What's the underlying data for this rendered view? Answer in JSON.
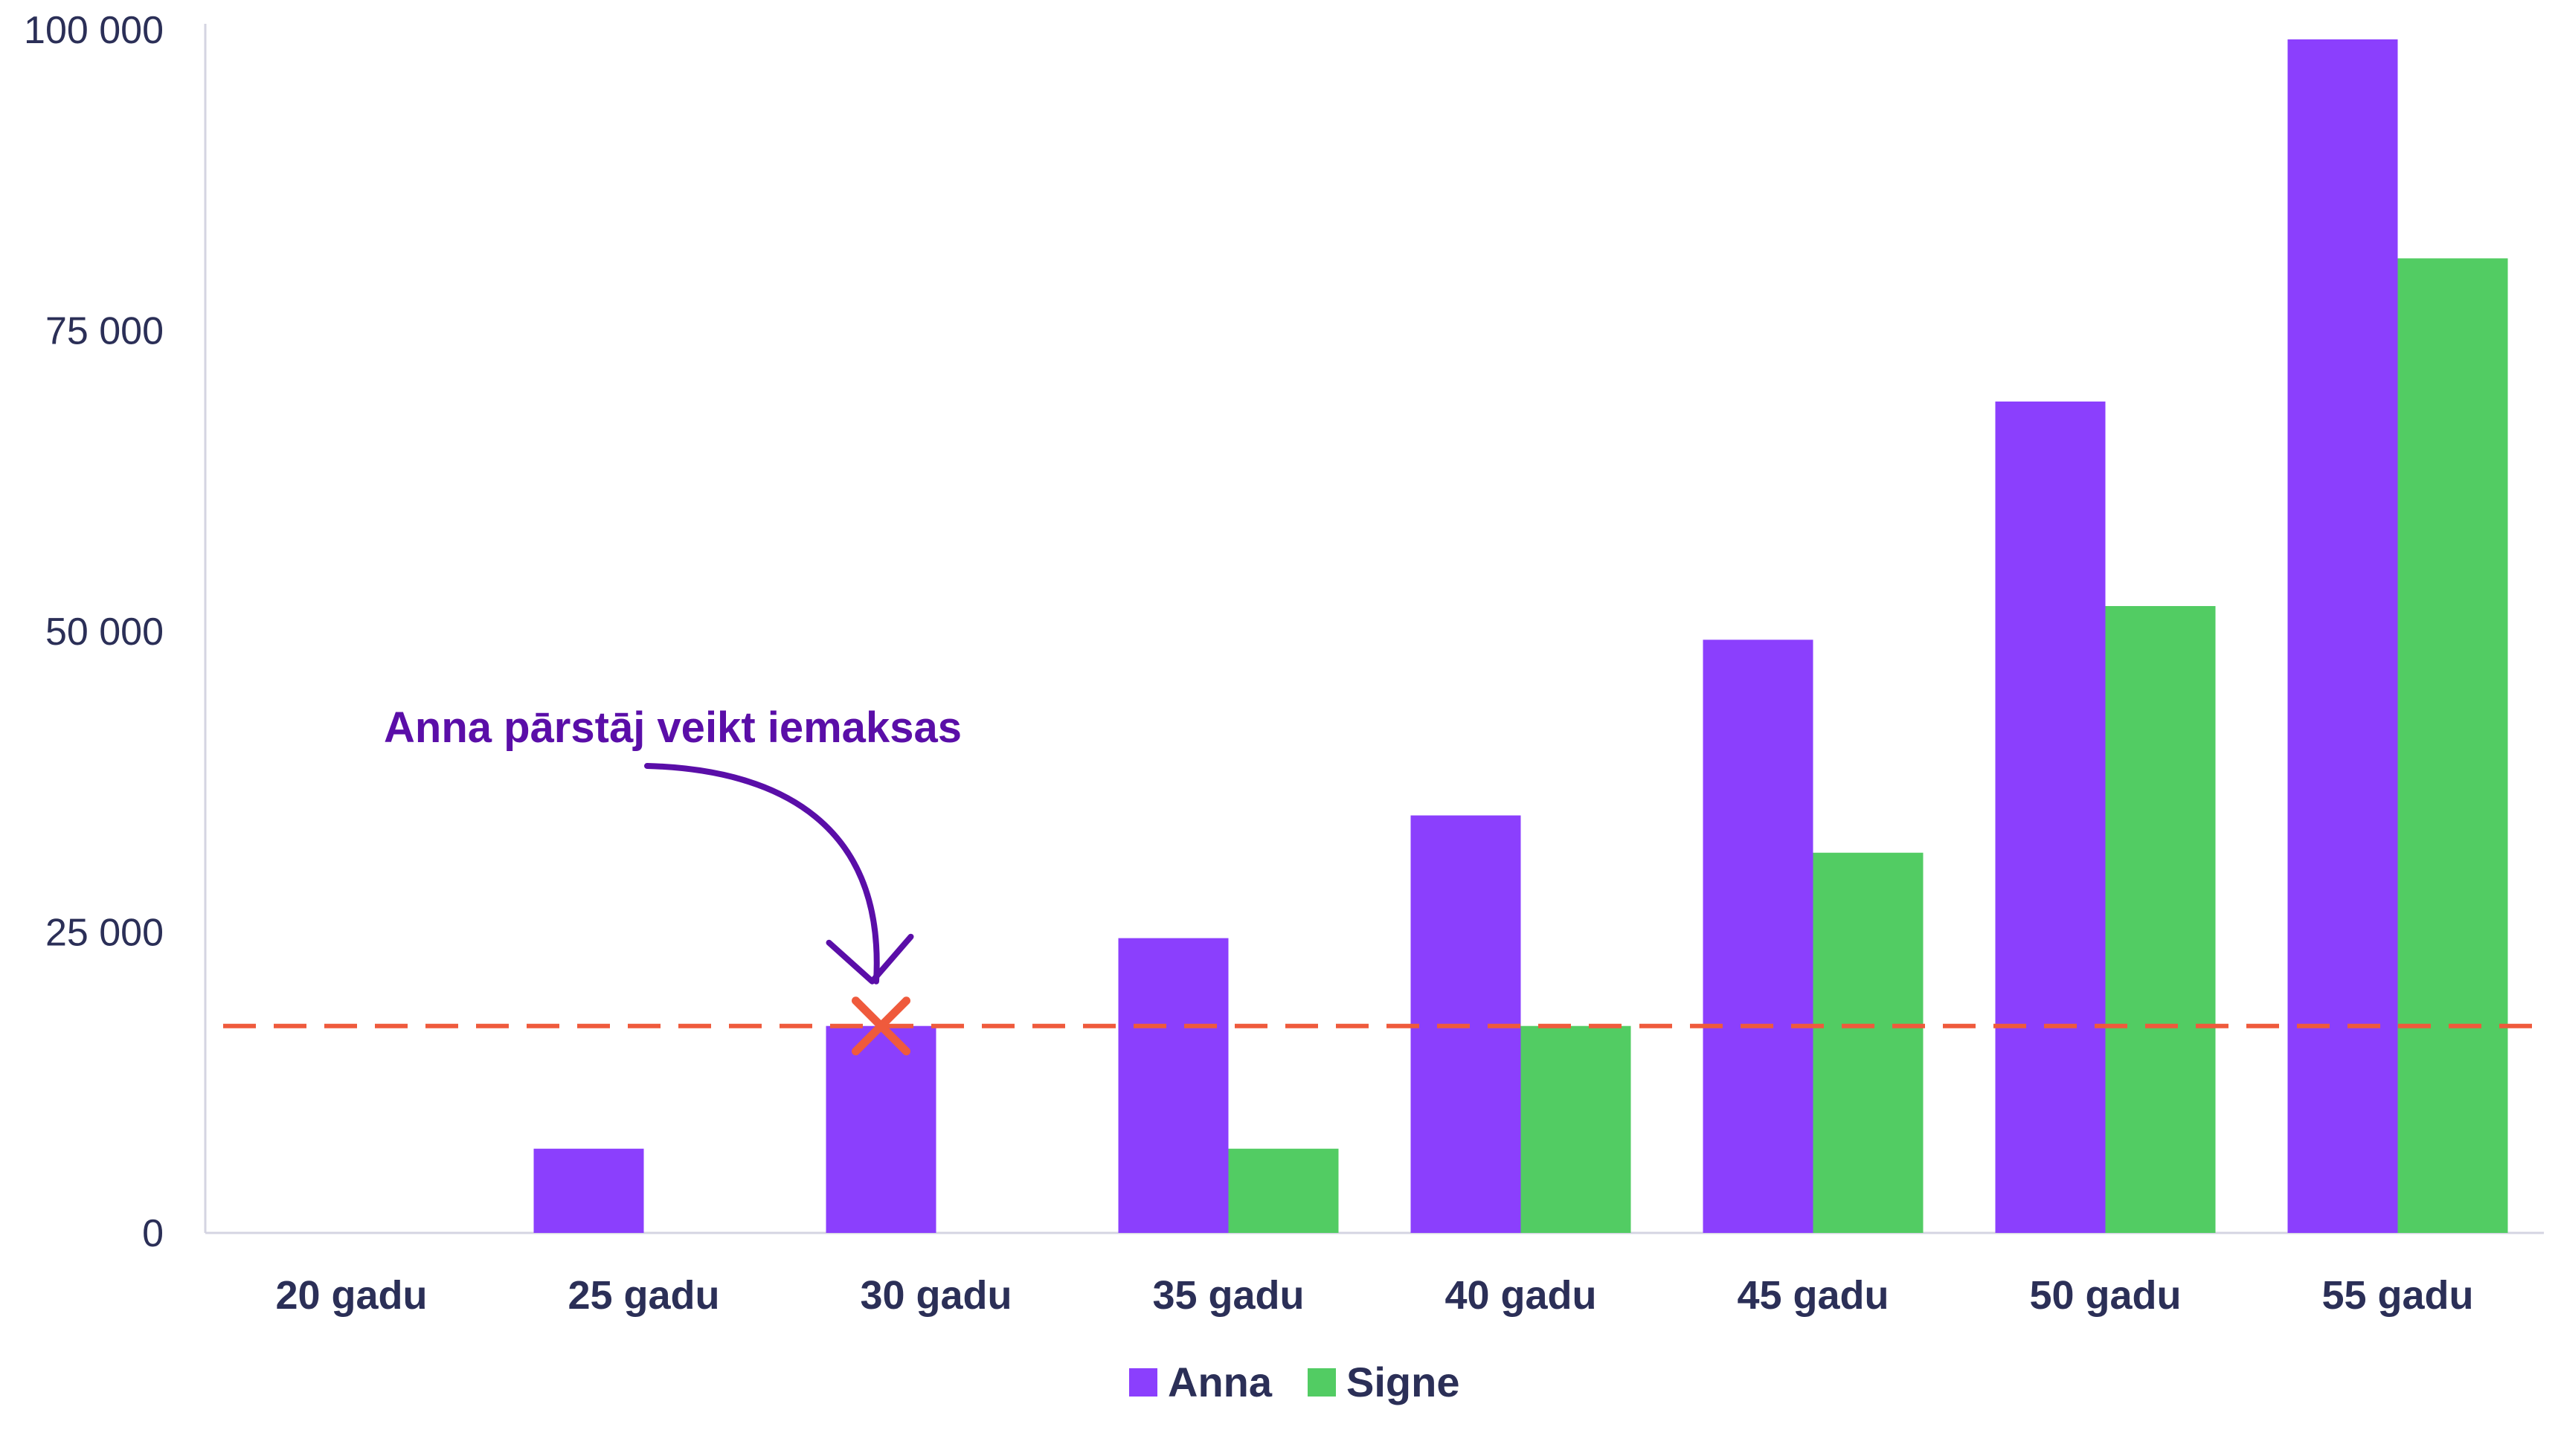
{
  "chart_data": {
    "type": "bar",
    "title": "",
    "xlabel": "",
    "ylabel": "",
    "categories": [
      "20 gadu",
      "25 gadu",
      "30 gadu",
      "35 gadu",
      "40 gadu",
      "45 gadu",
      "50 gadu",
      "55 gadu"
    ],
    "series": [
      {
        "name": "Anna",
        "color": "#8b3ffd",
        "values": [
          0,
          7000,
          17200,
          24500,
          34700,
          49300,
          69100,
          99200
        ]
      },
      {
        "name": "Signe",
        "color": "#52cc63",
        "values": [
          0,
          0,
          0,
          7000,
          17200,
          31600,
          52100,
          81000
        ]
      }
    ],
    "ylim": [
      0,
      100000
    ],
    "yticks": [
      0,
      25000,
      50000,
      75000,
      100000
    ],
    "ytick_labels": [
      "0",
      "25 000",
      "50 000",
      "75 000",
      "100 000"
    ],
    "grid": false,
    "legend_position": "bottom-center",
    "reference_line": {
      "value": 17200,
      "style": "dashed",
      "color": "#ef5a3c"
    },
    "marker": {
      "category": "30 gadu",
      "series": "Anna",
      "value": 17200,
      "symbol": "x",
      "color": "#ef5a3c"
    },
    "annotation": {
      "text": "Anna pārstāj veikt iemaksas",
      "color": "#5a0ea8",
      "points_to_category": "30 gadu"
    }
  }
}
